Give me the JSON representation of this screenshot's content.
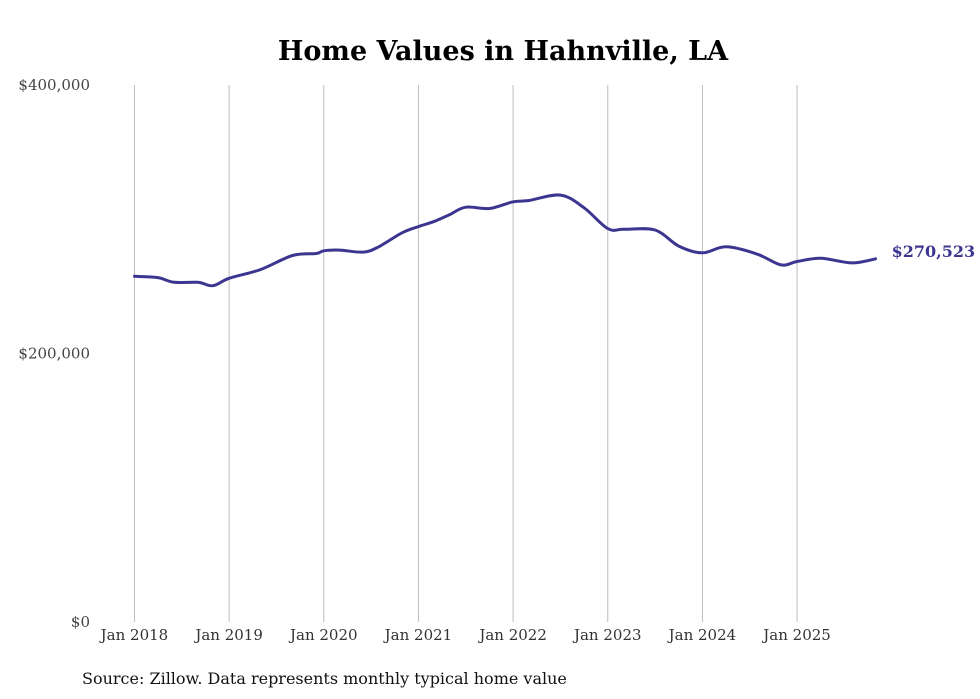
{
  "chart_data": {
    "type": "line",
    "title": "Home Values in Hahnville, LA",
    "xlabel": "",
    "ylabel": "",
    "ylim": [
      0,
      400000
    ],
    "y_ticks": [
      {
        "value": 0,
        "label": "$0"
      },
      {
        "value": 200000,
        "label": "$200,000"
      },
      {
        "value": 400000,
        "label": "$400,000"
      }
    ],
    "x_ticks": [
      {
        "value": 2018.0,
        "label": "Jan 2018"
      },
      {
        "value": 2019.0,
        "label": "Jan 2019"
      },
      {
        "value": 2020.0,
        "label": "Jan 2020"
      },
      {
        "value": 2021.0,
        "label": "Jan 2021"
      },
      {
        "value": 2022.0,
        "label": "Jan 2022"
      },
      {
        "value": 2023.0,
        "label": "Jan 2023"
      },
      {
        "value": 2024.0,
        "label": "Jan 2024"
      },
      {
        "value": 2025.0,
        "label": "Jan 2025"
      }
    ],
    "xlim": [
      2017.9,
      2025.95
    ],
    "grid": "vertical",
    "series": [
      {
        "name": "Typical home value",
        "color": "#3d3691",
        "end_label": "$270,523",
        "x": [
          2018.0,
          2018.25,
          2018.42,
          2018.67,
          2018.83,
          2019.0,
          2019.33,
          2019.67,
          2019.92,
          2020.0,
          2020.17,
          2020.42,
          2020.58,
          2020.83,
          2021.0,
          2021.17,
          2021.33,
          2021.5,
          2021.75,
          2022.0,
          2022.17,
          2022.5,
          2022.75,
          2023.0,
          2023.17,
          2023.5,
          2023.75,
          2024.0,
          2024.25,
          2024.58,
          2024.83,
          2025.0,
          2025.25,
          2025.58,
          2025.83
        ],
        "values": [
          257500,
          256500,
          253000,
          253000,
          250500,
          256000,
          262500,
          273000,
          274500,
          276500,
          277000,
          275500,
          279500,
          290000,
          294500,
          298500,
          303500,
          309000,
          308000,
          313000,
          314000,
          318000,
          308500,
          293000,
          292500,
          292000,
          280000,
          275000,
          279500,
          274000,
          266000,
          268500,
          271000,
          267500,
          270523
        ]
      }
    ]
  },
  "footer": {
    "source": "Source: Zillow. Data represents monthly typical home value"
  }
}
